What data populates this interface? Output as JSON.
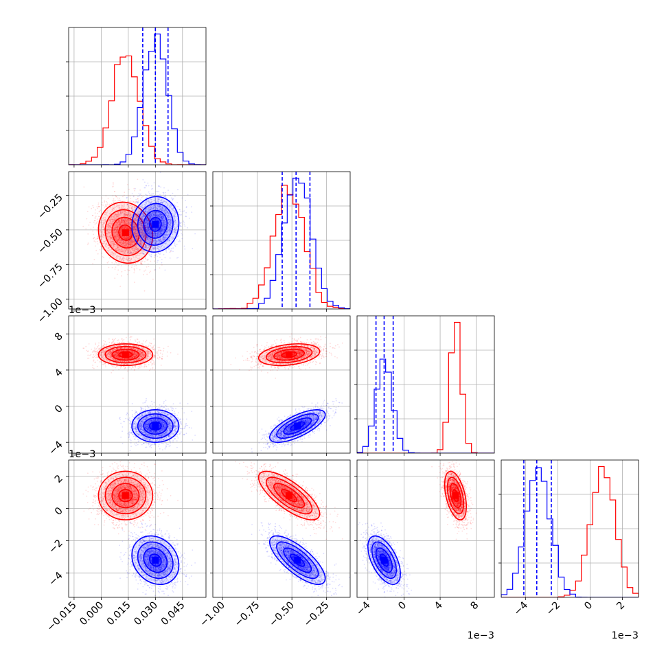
{
  "chart_data": {
    "type": "corner",
    "n_params": 4,
    "grid": true,
    "colors": {
      "red": "#ff0000",
      "blue": "#0000ff"
    },
    "series": [
      {
        "color": "#ff0000",
        "means": [
          0.0135,
          -0.52,
          0.0057,
          0.0008
        ],
        "stds": [
          0.0075,
          0.11,
          0.0006,
          0.00075
        ],
        "correlations": {
          "1,0": -0.1,
          "2,0": 0.0,
          "2,1": 0.3,
          "3,0": 0.0,
          "3,1": -0.75,
          "3,2": -0.45
        }
      },
      {
        "color": "#0000ff",
        "means": [
          0.03,
          -0.46,
          -0.0022,
          -0.0032
        ],
        "stds": [
          0.0065,
          0.1,
          0.0009,
          0.00075
        ],
        "correlations": {
          "1,0": 0.05,
          "2,0": 0.0,
          "2,1": 0.7,
          "3,0": -0.2,
          "3,1": -0.75,
          "3,2": -0.55
        },
        "quantiles": [
          [
            0.023,
            0.03,
            0.037
          ],
          [
            -0.57,
            -0.47,
            -0.37
          ],
          [
            -0.0031,
            -0.0022,
            -0.0012
          ],
          [
            -0.0041,
            -0.0033,
            -0.0024
          ]
        ]
      }
    ],
    "axes": [
      {
        "range": [
          -0.018,
          0.058
        ],
        "ticks": [
          -0.015,
          0.0,
          0.015,
          0.03,
          0.045
        ],
        "tick_labels": [
          "−0.015",
          "0.000",
          "0.015",
          "0.030",
          "0.045"
        ],
        "offset_label": ""
      },
      {
        "range": [
          -1.07,
          -0.08
        ],
        "ticks": [
          -1.0,
          -0.75,
          -0.5,
          -0.25
        ],
        "tick_labels": [
          "−1.00",
          "−0.75",
          "−0.50",
          "−0.25"
        ],
        "offset_label": ""
      },
      {
        "range": [
          -5.2,
          10.0
        ],
        "ticks": [
          -4,
          0,
          4,
          8
        ],
        "tick_labels": [
          "−4",
          "0",
          "4",
          "8"
        ],
        "offset_label": "1e−3"
      },
      {
        "range": [
          -5.5,
          3.0
        ],
        "ticks": [
          -4,
          -2,
          0,
          2
        ],
        "tick_labels": [
          "−4",
          "−2",
          "0",
          "2"
        ],
        "offset_label": "1e−3"
      }
    ],
    "axis_scale": [
      1,
      1,
      1000,
      1000
    ],
    "diag_ylim_scale": 1.05
  }
}
